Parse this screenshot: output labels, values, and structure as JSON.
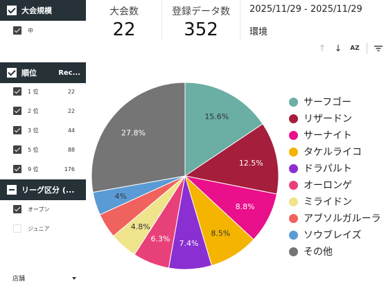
{
  "filters": {
    "size": {
      "header": "大会規模",
      "items": [
        {
          "label": "中",
          "count": "",
          "checked": true
        }
      ]
    },
    "rank": {
      "header": "順位",
      "rec_header": "Rec...",
      "items": [
        {
          "label": "1 位",
          "count": "22",
          "checked": true
        },
        {
          "label": "2 位",
          "count": "22",
          "checked": true
        },
        {
          "label": "3 位",
          "count": "44",
          "checked": true
        },
        {
          "label": "5 位",
          "count": "88",
          "checked": true
        },
        {
          "label": "9 位",
          "count": "176",
          "checked": true
        }
      ]
    },
    "league": {
      "header": "リーグ区分 (...",
      "items": [
        {
          "label": "オープン",
          "count": "",
          "checked": true
        },
        {
          "label": "ジュニア",
          "count": "",
          "checked": false
        }
      ]
    },
    "store": {
      "label": "店舗"
    }
  },
  "scorecards": {
    "tournaments": {
      "title": "大会数",
      "value": "22"
    },
    "records": {
      "title": "登録データ数",
      "value": "352"
    }
  },
  "date_range": "2025/11/29 - 2025/11/29",
  "environment_label": "環境",
  "toolbar": {
    "sort_up": "↑",
    "sort_down": "↓",
    "sort_az": "AZ",
    "filter": "filter-icon"
  },
  "chart_data": {
    "type": "pie",
    "slices": [
      {
        "name": "サーフゴー",
        "value": 15.6,
        "label": "15.6%",
        "color": "#6aaea4"
      },
      {
        "name": "リザードン",
        "value": 12.5,
        "label": "12.5%",
        "color": "#a51e3b"
      },
      {
        "name": "サーナイト",
        "value": 8.8,
        "label": "8.8%",
        "color": "#ea0f8a"
      },
      {
        "name": "タケルライコ",
        "value": 8.5,
        "label": "8.5%",
        "color": "#f4b400"
      },
      {
        "name": "ドラパルト",
        "value": 7.4,
        "label": "7.4%",
        "color": "#8a2fd1"
      },
      {
        "name": "オーロンゲ",
        "value": 6.3,
        "label": "6.3%",
        "color": "#e8417a"
      },
      {
        "name": "ミライドン",
        "value": 4.8,
        "label": "4.8%",
        "color": "#efe48c"
      },
      {
        "name": "アブソルガルーラ",
        "value": 4.3,
        "label": "",
        "color": "#f0625e"
      },
      {
        "name": "ソウブレイズ",
        "value": 4.0,
        "label": "4%",
        "color": "#5b9bd5"
      },
      {
        "name": "その他",
        "value": 27.8,
        "label": "27.8%",
        "color": "#757575"
      }
    ],
    "legend_position": "right"
  }
}
